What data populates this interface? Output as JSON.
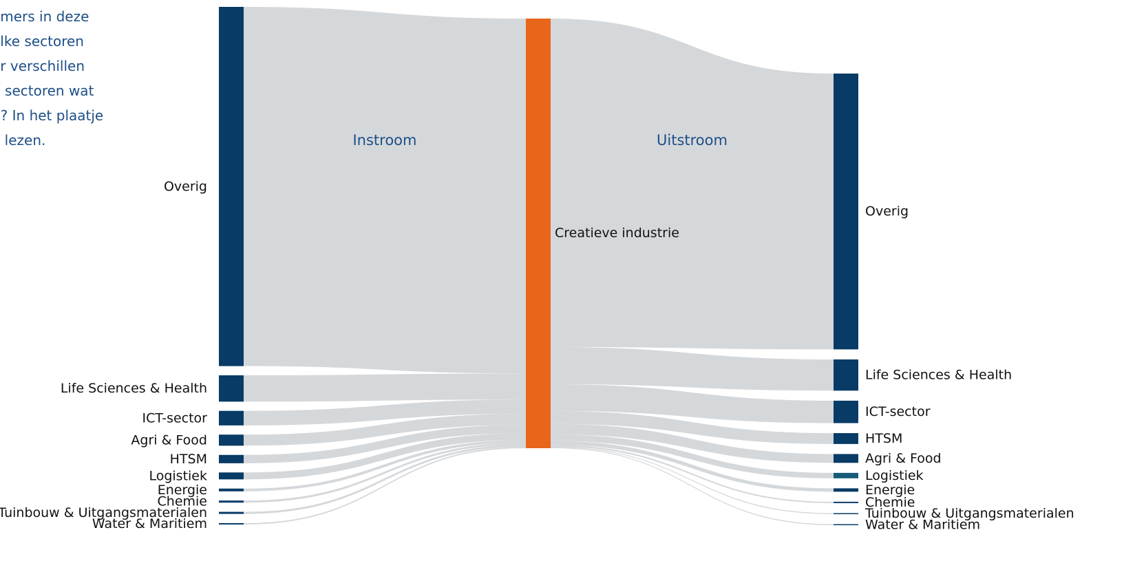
{
  "intro_lines": [
    "omers in deze",
    "elke sectoren",
    "er verschillen",
    "n sectoren wat",
    "n? In het plaatje",
    "e lezen."
  ],
  "colors": {
    "left_node": "#083b66",
    "center_node": "#e8661a",
    "right_node": "#083b66",
    "right_node_alt": "#165a78",
    "link": "#d5d8db",
    "section_label": "#1d4f86",
    "label": "#111111"
  },
  "chart_data": {
    "type": "sankey",
    "title": "",
    "section_labels": [
      "Instroom",
      "Uitstroom"
    ],
    "center_node": "Creatieve industrie",
    "unit_note": "relative flow sizes estimated from bar heights",
    "inflows": [
      {
        "name": "Overig",
        "value": 518
      },
      {
        "name": "Life Sciences & Health",
        "value": 38
      },
      {
        "name": "ICT-sector",
        "value": 21
      },
      {
        "name": "Agri & Food",
        "value": 16
      },
      {
        "name": "HTSM",
        "value": 12
      },
      {
        "name": "Logistiek",
        "value": 10
      },
      {
        "name": "Energie",
        "value": 4
      },
      {
        "name": "Chemie",
        "value": 3
      },
      {
        "name": "Tuinbouw & Uitgangsmaterialen",
        "value": 3
      },
      {
        "name": "Water & Maritiem",
        "value": 2
      }
    ],
    "outflows": [
      {
        "name": "Overig",
        "value": 406
      },
      {
        "name": "Life Sciences & Health",
        "value": 46
      },
      {
        "name": "ICT-sector",
        "value": 33
      },
      {
        "name": "HTSM",
        "value": 16
      },
      {
        "name": "Agri & Food",
        "value": 13
      },
      {
        "name": "Logistiek",
        "value": 8
      },
      {
        "name": "Energie",
        "value": 5
      },
      {
        "name": "Chemie",
        "value": 2
      },
      {
        "name": "Tuinbouw & Uitgangsmaterialen",
        "value": 1
      },
      {
        "name": "Water & Maritiem",
        "value": 1
      }
    ]
  }
}
